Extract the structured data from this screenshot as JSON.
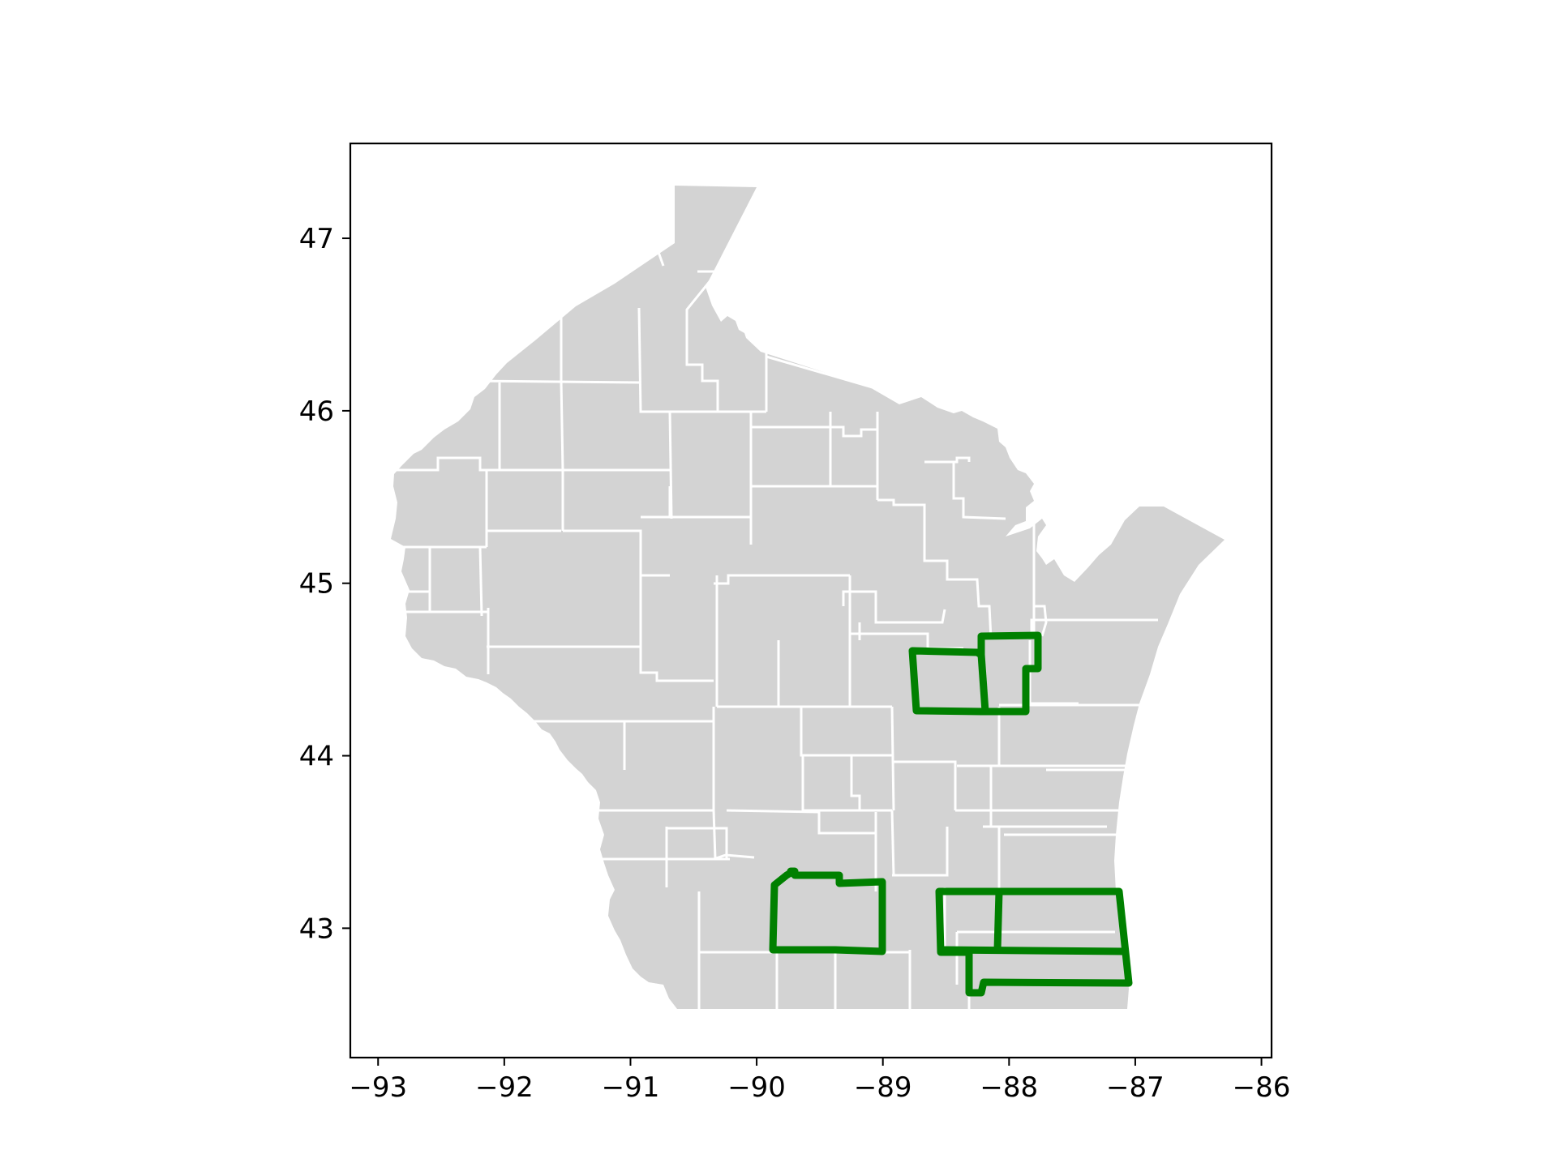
{
  "colors": {
    "background": "#ffffff",
    "axes_frame": "#000000",
    "county_fill": "#d3d3d3",
    "county_border": "#ffffff",
    "highlight": "#008000"
  },
  "map": {
    "region": "Wisconsin counties",
    "highlighted_regions": 3
  },
  "chart_data": {
    "type": "map",
    "x_ticks": [
      "−93",
      "−92",
      "−91",
      "−90",
      "−89",
      "−88",
      "−87",
      "−86"
    ],
    "y_ticks": [
      "43",
      "44",
      "45",
      "46",
      "47"
    ],
    "xlim": [
      -93.22,
      -85.92
    ],
    "ylim": [
      42.25,
      47.55
    ],
    "grid": false,
    "legend": "none"
  }
}
